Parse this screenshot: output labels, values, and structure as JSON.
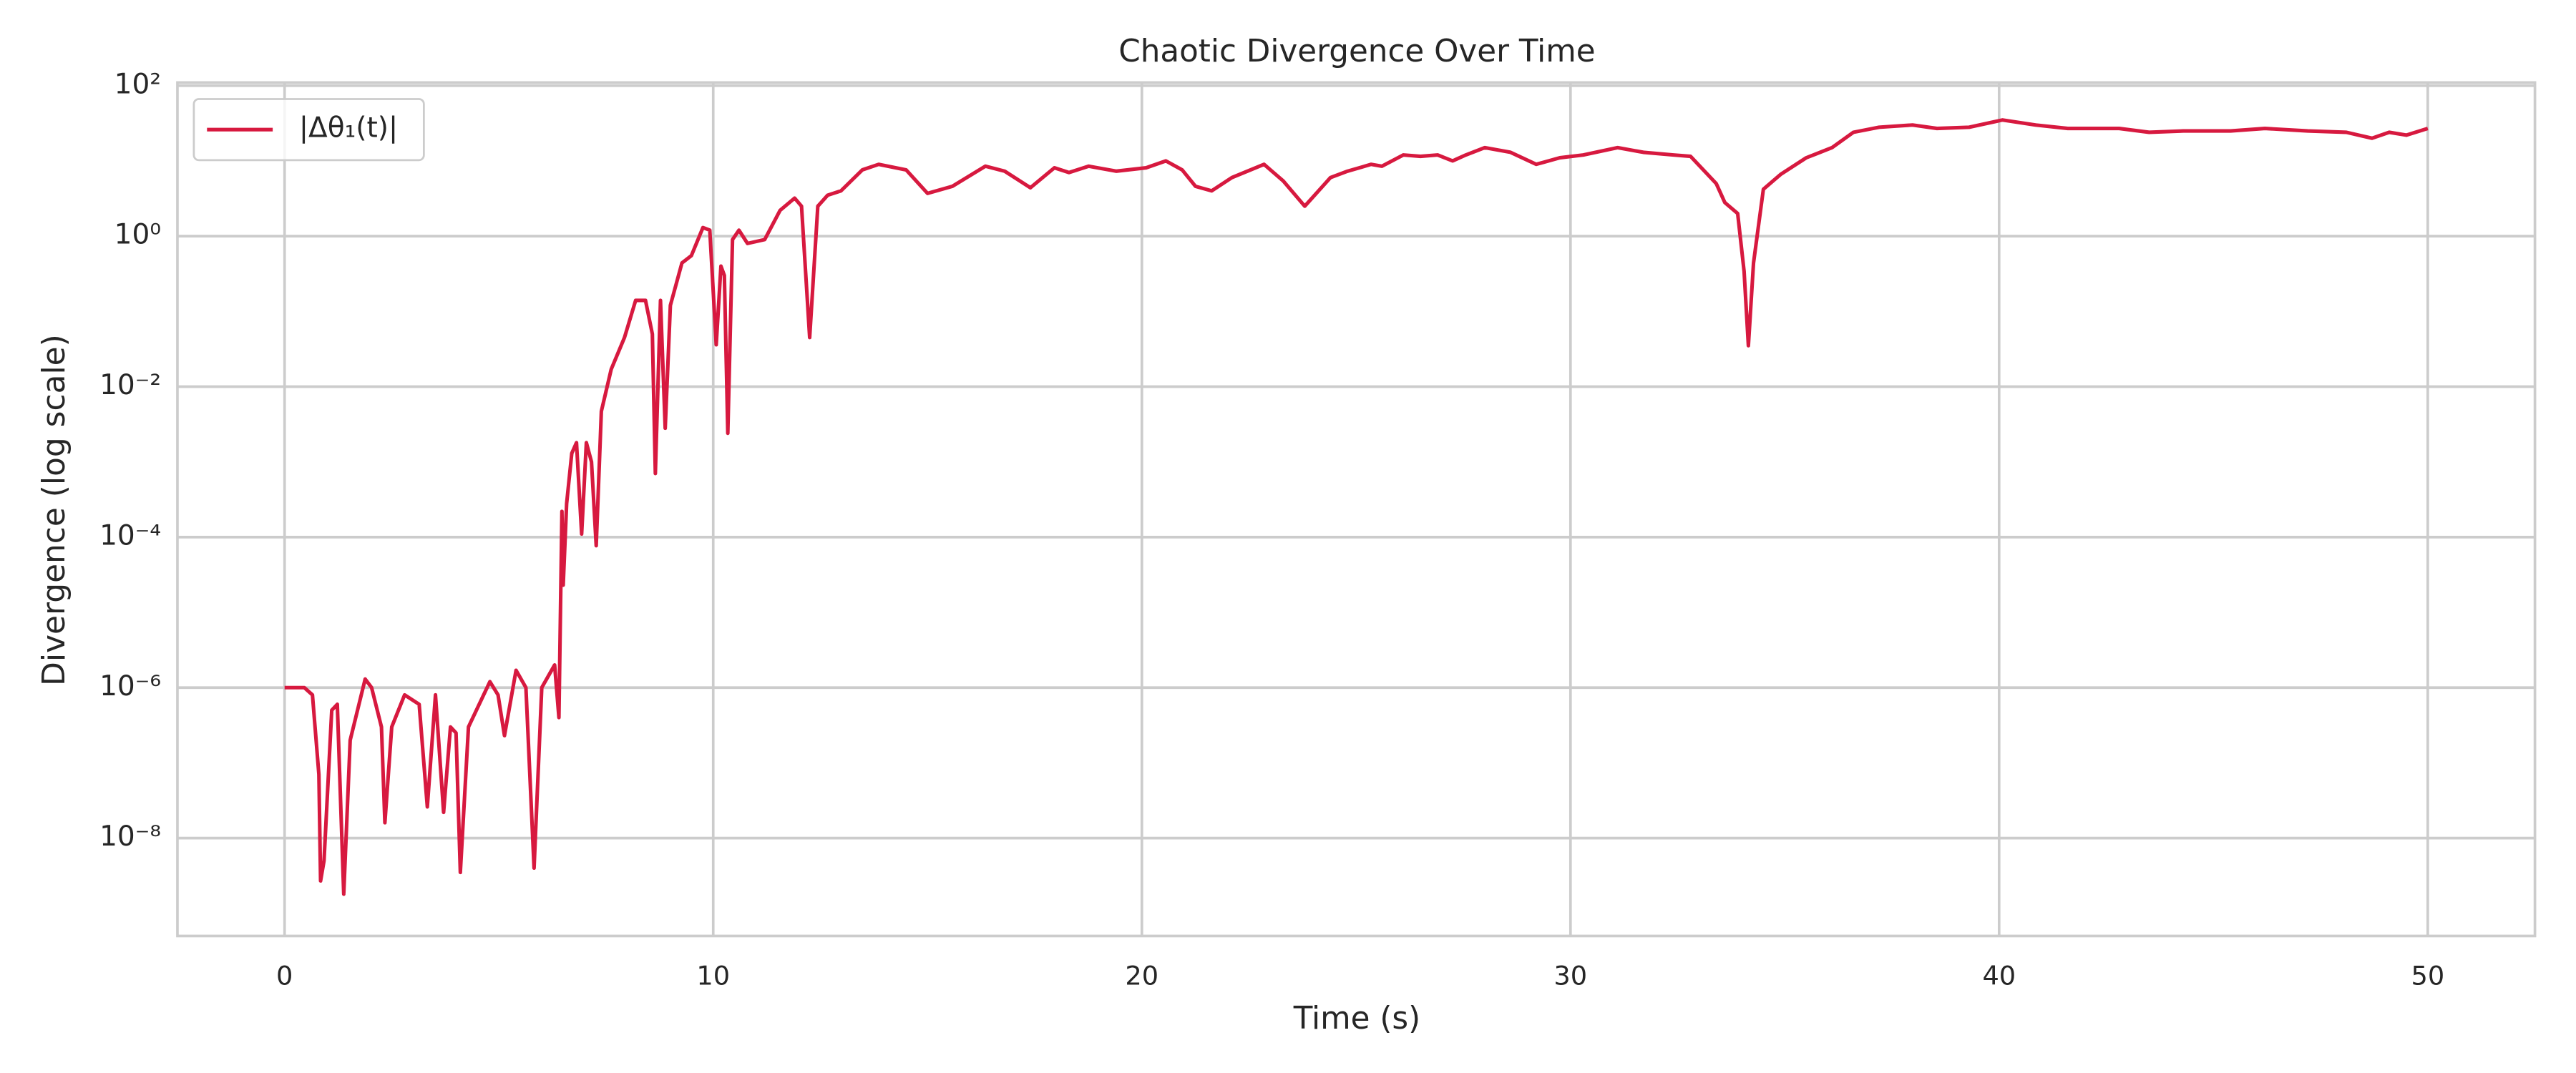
{
  "chart_data": {
    "type": "line",
    "title": "Chaotic Divergence Over Time",
    "xlabel": "Time (s)",
    "ylabel": "Divergence (log scale)",
    "x": [
      0,
      0.46,
      0.65,
      0.8,
      0.84,
      0.92,
      1.1,
      1.23,
      1.38,
      1.53,
      1.88,
      2.03,
      2.26,
      2.34,
      2.5,
      2.8,
      3.14,
      3.33,
      3.52,
      3.71,
      3.87,
      4.0,
      4.1,
      4.29,
      4.79,
      4.98,
      5.13,
      5.4,
      5.63,
      5.82,
      6.0,
      6.3,
      6.4,
      6.47,
      6.5,
      6.58,
      6.7,
      6.81,
      6.93,
      7.04,
      7.16,
      7.27,
      7.39,
      7.62,
      7.93,
      8.19,
      8.42,
      8.58,
      8.65,
      8.77,
      8.88,
      9.0,
      9.27,
      9.49,
      9.76,
      9.92,
      10.07,
      10.18,
      10.26,
      10.34,
      10.45,
      10.6,
      10.8,
      11.2,
      11.56,
      11.9,
      12.06,
      12.25,
      12.44,
      12.67,
      12.98,
      13.48,
      13.86,
      14.5,
      15.0,
      15.58,
      16.35,
      16.8,
      17.4,
      17.96,
      18.3,
      18.76,
      19.4,
      20.1,
      20.56,
      20.94,
      21.25,
      21.63,
      22.1,
      22.85,
      23.3,
      23.8,
      24.4,
      24.8,
      25.35,
      25.6,
      26.1,
      26.5,
      26.9,
      27.25,
      27.56,
      28.0,
      28.6,
      29.2,
      29.75,
      30.3,
      31.1,
      31.7,
      32.4,
      32.8,
      33.4,
      33.6,
      33.9,
      34.05,
      34.15,
      34.27,
      34.5,
      34.9,
      35.5,
      36.1,
      36.6,
      37.2,
      37.98,
      38.55,
      39.3,
      40.08,
      40.85,
      41.6,
      42.8,
      43.5,
      44.3,
      45.4,
      46.2,
      47.2,
      48.1,
      48.7,
      49.1,
      49.5,
      50.0
    ],
    "series": [
      {
        "name": "|Δθ₁(t)|",
        "color": "#d7193f",
        "values": [
          1e-06,
          1e-06,
          8e-07,
          7e-08,
          2.7e-09,
          5e-09,
          5e-07,
          6e-07,
          1.8e-09,
          2e-07,
          1.3e-06,
          1e-06,
          3e-07,
          1.6e-08,
          3e-07,
          8e-07,
          6e-07,
          2.6e-08,
          8e-07,
          2.2e-08,
          3e-07,
          2.5e-07,
          3.5e-09,
          3e-07,
          1.2e-06,
          8e-07,
          2.3e-07,
          1.7e-06,
          1e-06,
          4e-09,
          1e-06,
          2e-06,
          4e-07,
          0.00022,
          2.3e-05,
          0.00028,
          0.0013,
          0.0018,
          0.00011,
          0.0018,
          0.001,
          7.7e-05,
          0.0047,
          0.017,
          0.045,
          0.14,
          0.14,
          0.05,
          0.0007,
          0.14,
          0.0028,
          0.12,
          0.44,
          0.55,
          1.3,
          1.2,
          0.036,
          0.4,
          0.3,
          0.0024,
          0.9,
          1.2,
          0.8,
          0.9,
          2.2,
          3.2,
          2.5,
          0.045,
          2.5,
          3.5,
          4,
          7.6,
          9,
          7.6,
          3.7,
          4.6,
          8.5,
          7.3,
          4.4,
          8.1,
          7,
          8.5,
          7.3,
          8.1,
          10,
          7.6,
          4.6,
          4,
          6,
          9,
          5.4,
          2.5,
          6,
          7.3,
          9,
          8.5,
          12,
          11.5,
          12,
          10,
          12,
          15,
          13,
          9,
          11,
          12,
          15,
          13,
          12,
          11.5,
          5,
          2.8,
          2,
          0.34,
          0.035,
          0.44,
          4.2,
          6.6,
          11,
          15,
          24,
          28,
          30,
          27,
          28,
          35,
          30,
          27,
          27,
          24,
          25,
          25,
          27,
          25,
          24,
          20,
          24,
          22,
          27
        ]
      }
    ],
    "xlim": [
      -2.5,
      52.5
    ],
    "ylim": [
      5e-10,
      110
    ],
    "xticks": [
      0,
      10,
      20,
      30,
      40,
      50
    ],
    "yticks": [
      {
        "value": 1e-08,
        "label": "10⁻⁸"
      },
      {
        "value": 1e-06,
        "label": "10⁻⁶"
      },
      {
        "value": 0.0001,
        "label": "10⁻⁴"
      },
      {
        "value": 0.01,
        "label": "10⁻²"
      },
      {
        "value": 1,
        "label": "10⁰"
      },
      {
        "value": 100,
        "label": "10²"
      }
    ],
    "yscale": "log",
    "grid": true,
    "legend": "upper left"
  }
}
